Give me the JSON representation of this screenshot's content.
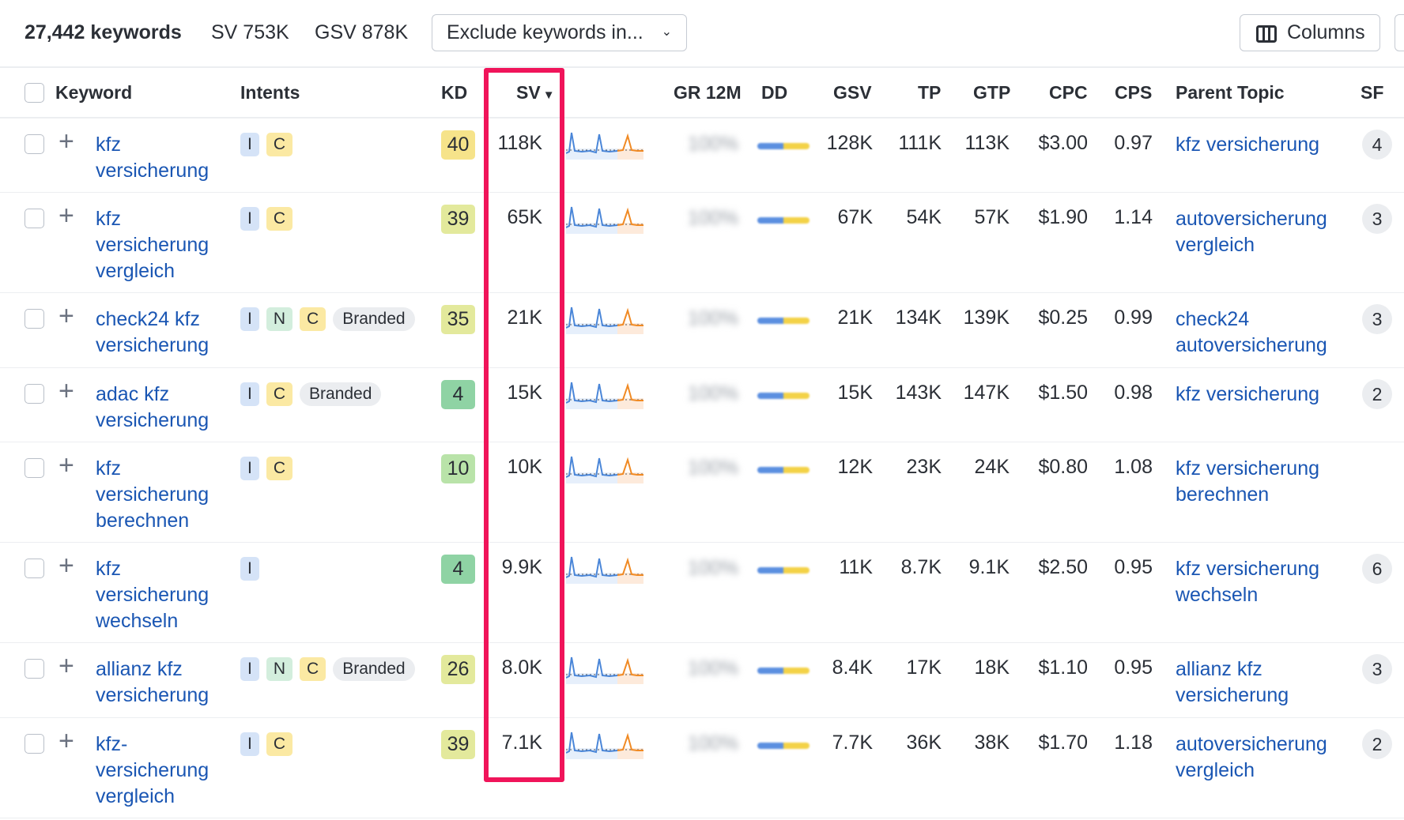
{
  "summary": {
    "keywords_count": "27,442 keywords",
    "sv": "SV 753K",
    "gsv": "GSV 878K"
  },
  "toolbar": {
    "exclude_label": "Exclude keywords in...",
    "columns_label": "Columns"
  },
  "columns": {
    "keyword": "Keyword",
    "intents": "Intents",
    "kd": "KD",
    "sv": "SV",
    "gr": "GR 12M",
    "dd": "DD",
    "gsv": "GSV",
    "tp": "TP",
    "gtp": "GTP",
    "cpc": "CPC",
    "cps": "CPS",
    "parent_topic": "Parent Topic",
    "sf": "SF"
  },
  "colors": {
    "link": "#1a56b3",
    "highlight": "#f0145a",
    "kd_yellow": "#f6e38a",
    "kd_olive": "#e3e99c",
    "kd_green": "#8fd3a4",
    "kd_lightgreen": "#b9e3a9"
  },
  "rows": [
    {
      "keyword": "kfz versicherung",
      "intents": [
        "I",
        "C"
      ],
      "branded": "",
      "kd": "40",
      "kd_color": "#f6e38a",
      "sv": "118K",
      "gr": "100%",
      "gsv": "128K",
      "tp": "111K",
      "gtp": "113K",
      "cpc": "$3.00",
      "cps": "0.97",
      "parent_topic": "kfz versicherung",
      "sf": "4"
    },
    {
      "keyword": "kfz versicherung vergleich",
      "intents": [
        "I",
        "C"
      ],
      "branded": "",
      "kd": "39",
      "kd_color": "#e3e99c",
      "sv": "65K",
      "gr": "100%",
      "gsv": "67K",
      "tp": "54K",
      "gtp": "57K",
      "cpc": "$1.90",
      "cps": "1.14",
      "parent_topic": "autoversicherung vergleich",
      "sf": "3"
    },
    {
      "keyword": "check24 kfz versicherung",
      "intents": [
        "I",
        "N",
        "C"
      ],
      "branded": "Branded",
      "kd": "35",
      "kd_color": "#e3e99c",
      "sv": "21K",
      "gr": "100%",
      "gsv": "21K",
      "tp": "134K",
      "gtp": "139K",
      "cpc": "$0.25",
      "cps": "0.99",
      "parent_topic": "check24 autoversicherung",
      "sf": "3"
    },
    {
      "keyword": "adac kfz versicherung",
      "intents": [
        "I",
        "C"
      ],
      "branded": "Branded",
      "kd": "4",
      "kd_color": "#8fd3a4",
      "sv": "15K",
      "gr": "100%",
      "gsv": "15K",
      "tp": "143K",
      "gtp": "147K",
      "cpc": "$1.50",
      "cps": "0.98",
      "parent_topic": "kfz versicherung",
      "sf": "2"
    },
    {
      "keyword": "kfz versicherung berechnen",
      "intents": [
        "I",
        "C"
      ],
      "branded": "",
      "kd": "10",
      "kd_color": "#b9e3a9",
      "sv": "10K",
      "gr": "100%",
      "gsv": "12K",
      "tp": "23K",
      "gtp": "24K",
      "cpc": "$0.80",
      "cps": "1.08",
      "parent_topic": "kfz versicherung berechnen",
      "sf": ""
    },
    {
      "keyword": "kfz versicherung wechseln",
      "intents": [
        "I"
      ],
      "branded": "",
      "kd": "4",
      "kd_color": "#8fd3a4",
      "sv": "9.9K",
      "gr": "100%",
      "gsv": "11K",
      "tp": "8.7K",
      "gtp": "9.1K",
      "cpc": "$2.50",
      "cps": "0.95",
      "parent_topic": "kfz versicherung wechseln",
      "sf": "6"
    },
    {
      "keyword": "allianz kfz versicherung",
      "intents": [
        "I",
        "N",
        "C"
      ],
      "branded": "Branded",
      "kd": "26",
      "kd_color": "#e3e99c",
      "sv": "8.0K",
      "gr": "100%",
      "gsv": "8.4K",
      "tp": "17K",
      "gtp": "18K",
      "cpc": "$1.10",
      "cps": "0.95",
      "parent_topic": "allianz kfz versicherung",
      "sf": "3"
    },
    {
      "keyword": "kfz-versicherung vergleich",
      "intents": [
        "I",
        "C"
      ],
      "branded": "",
      "kd": "39",
      "kd_color": "#e3e99c",
      "sv": "7.1K",
      "gr": "100%",
      "gsv": "7.7K",
      "tp": "36K",
      "gtp": "38K",
      "cpc": "$1.70",
      "cps": "1.18",
      "parent_topic": "autoversicherung vergleich",
      "sf": "2"
    }
  ]
}
